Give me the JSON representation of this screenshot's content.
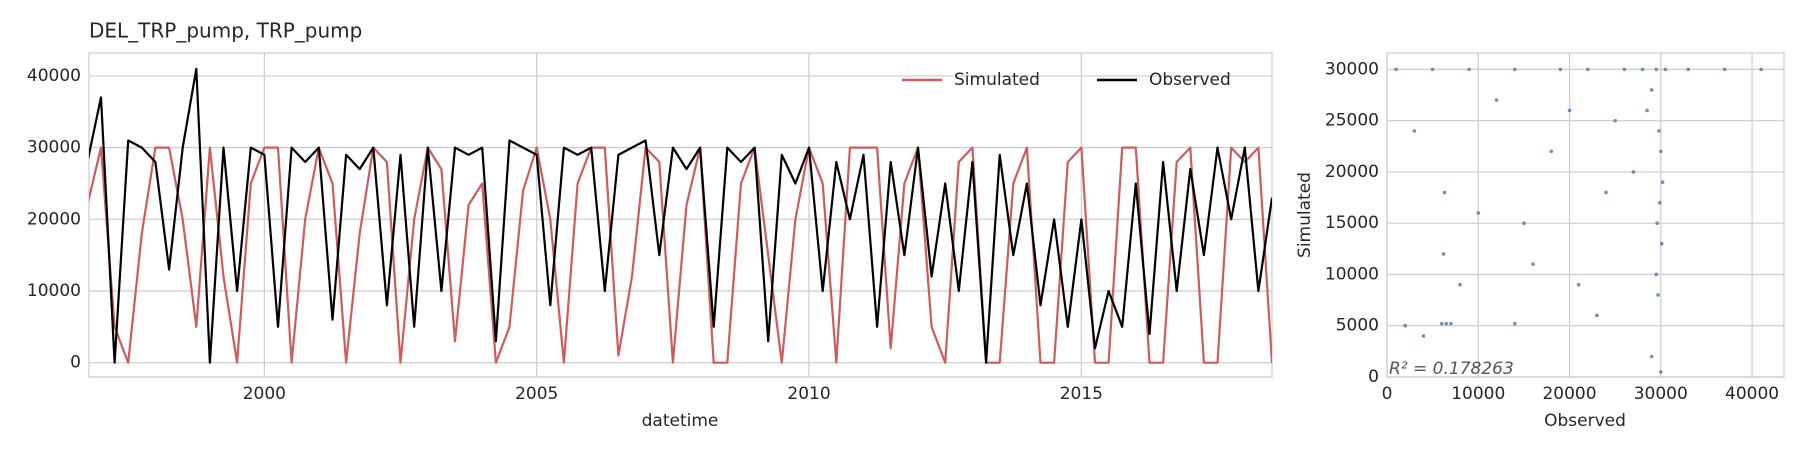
{
  "chart_data": [
    {
      "type": "line",
      "title": "DEL_TRP_pump, TRP_pump",
      "xlabel": "datetime",
      "x": [
        1996.75,
        1997,
        1997.25,
        1997.5,
        1997.75,
        1998,
        1998.25,
        1998.5,
        1998.75,
        1999,
        1999.25,
        1999.5,
        1999.75,
        2000,
        2000.25,
        2000.5,
        2000.75,
        2001,
        2001.25,
        2001.5,
        2001.75,
        2002,
        2002.25,
        2002.5,
        2002.75,
        2003,
        2003.25,
        2003.5,
        2003.75,
        2004,
        2004.25,
        2004.5,
        2004.75,
        2005,
        2005.25,
        2005.5,
        2005.75,
        2006,
        2006.25,
        2006.5,
        2006.75,
        2007,
        2007.25,
        2007.5,
        2007.75,
        2008,
        2008.25,
        2008.5,
        2008.75,
        2009,
        2009.25,
        2009.5,
        2009.75,
        2010,
        2010.25,
        2010.5,
        2010.75,
        2011,
        2011.25,
        2011.5,
        2011.75,
        2012,
        2012.25,
        2012.5,
        2012.75,
        2013,
        2013.25,
        2013.5,
        2013.75,
        2014,
        2014.25,
        2014.5,
        2014.75,
        2015,
        2015.25,
        2015.5,
        2015.75,
        2016,
        2016.25,
        2016.5,
        2016.75,
        2017,
        2017.25,
        2017.5,
        2017.75,
        2018,
        2018.25,
        2018.5
      ],
      "series": [
        {
          "name": "Simulated",
          "color": "#cd5c5c",
          "values": [
            22000,
            30000,
            5000,
            0,
            18000,
            30000,
            30000,
            20000,
            5000,
            30000,
            12000,
            0,
            25000,
            30000,
            30000,
            0,
            20000,
            30000,
            25000,
            0,
            18000,
            30000,
            28000,
            0,
            20000,
            30000,
            27000,
            3000,
            22000,
            25000,
            0,
            5000,
            24000,
            30000,
            20000,
            0,
            25000,
            30000,
            30000,
            1000,
            12000,
            30000,
            28000,
            0,
            22000,
            30000,
            0,
            0,
            25000,
            30000,
            15000,
            0,
            20000,
            30000,
            25000,
            0,
            30000,
            30000,
            30000,
            2000,
            25000,
            30000,
            5000,
            0,
            28000,
            30000,
            0,
            0,
            25000,
            30000,
            0,
            0,
            28000,
            30000,
            0,
            0,
            30000,
            30000,
            0,
            0,
            28000,
            30000,
            0,
            0,
            30000,
            28000,
            30000,
            0
          ]
        },
        {
          "name": "Observed",
          "color": "#000000",
          "values": [
            28000,
            37000,
            0,
            31000,
            30000,
            28000,
            13000,
            30000,
            41000,
            0,
            30000,
            10000,
            30000,
            29000,
            5000,
            30000,
            28000,
            30000,
            6000,
            29000,
            27000,
            30000,
            8000,
            29000,
            5000,
            30000,
            10000,
            30000,
            29000,
            30000,
            3000,
            31000,
            30000,
            29000,
            8000,
            30000,
            29000,
            30000,
            10000,
            29000,
            30000,
            31000,
            15000,
            30000,
            27000,
            30000,
            5000,
            30000,
            28000,
            30000,
            3000,
            29000,
            25000,
            30000,
            10000,
            28000,
            20000,
            29000,
            5000,
            28000,
            15000,
            30000,
            12000,
            25000,
            10000,
            28000,
            0,
            29000,
            15000,
            25000,
            8000,
            20000,
            5000,
            20000,
            2000,
            10000,
            5000,
            25000,
            4000,
            28000,
            10000,
            27000,
            15000,
            30000,
            20000,
            30000,
            10000,
            23000
          ]
        }
      ],
      "xlim": [
        1996.78,
        2018.5
      ],
      "xticks": [
        2000,
        2005,
        2010,
        2015
      ],
      "ylim": [
        -2000,
        43200
      ],
      "yticks": [
        0,
        10000,
        20000,
        30000,
        40000
      ],
      "grid": true,
      "legend": "upper right"
    },
    {
      "type": "scatter",
      "xlabel": "Observed",
      "ylabel": "Simulated",
      "annotation": "R² = 0.178263",
      "color": "#4682b4",
      "x": [
        1000,
        5000,
        9000,
        14000,
        19000,
        22000,
        26000,
        28000,
        29500,
        30500,
        33000,
        37000,
        41000,
        6000,
        6500,
        7000,
        6200,
        12000,
        15000,
        18000,
        21000,
        25000,
        27000,
        29000,
        29800,
        30200,
        29600,
        30000,
        29900,
        28500,
        2000,
        4000,
        8000,
        10000,
        16000,
        23000,
        29500,
        30100,
        6300,
        14000,
        20000,
        29000,
        30000,
        3000,
        24000,
        29700
      ],
      "values": [
        30000,
        30000,
        30000,
        30000,
        30000,
        30000,
        30000,
        30000,
        30000,
        30000,
        30000,
        30000,
        30000,
        5200,
        5200,
        5200,
        12000,
        27000,
        15000,
        22000,
        9000,
        25000,
        20000,
        28000,
        24000,
        19000,
        15000,
        22000,
        17000,
        26000,
        5000,
        4000,
        9000,
        16000,
        11000,
        6000,
        10000,
        13000,
        18000,
        5200,
        26000,
        2000,
        500,
        24000,
        18000,
        8000
      ],
      "xlim": [
        0,
        43500
      ],
      "xticks": [
        0,
        10000,
        20000,
        30000,
        40000
      ],
      "ylim": [
        0,
        31600
      ],
      "yticks": [
        0,
        5000,
        10000,
        15000,
        20000,
        25000,
        30000
      ],
      "grid": true
    }
  ]
}
